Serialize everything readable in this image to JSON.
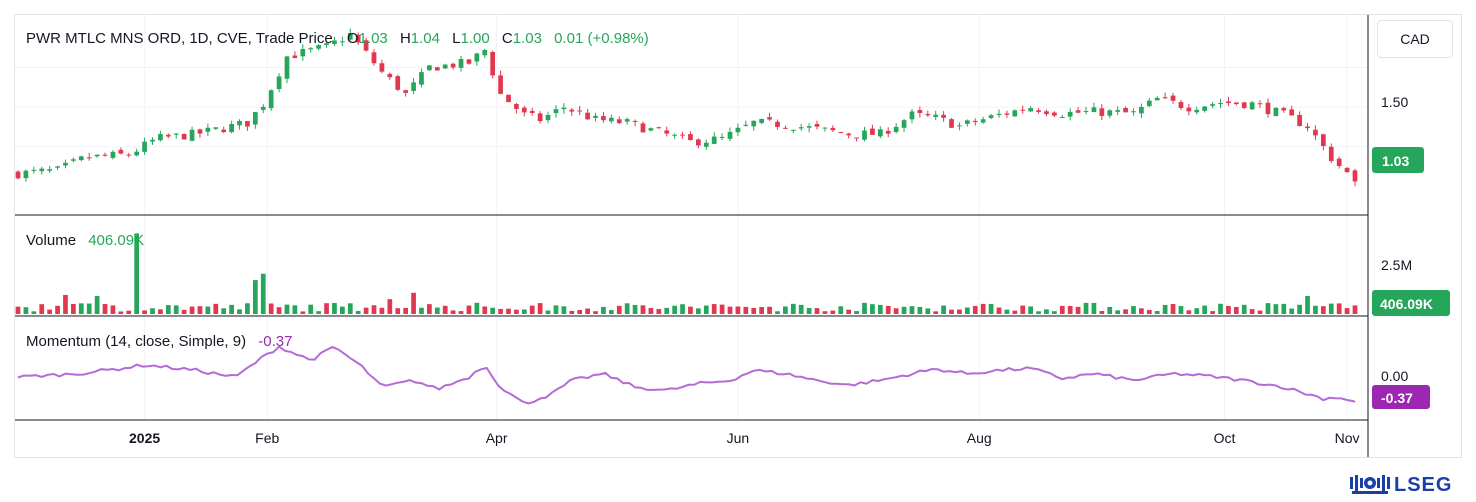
{
  "header": {
    "symbol_title": "PWR MTLC MNS ORD, 1D, CVE, Trade Price",
    "o_label": "O",
    "o_value": "1.03",
    "h_label": "H",
    "h_value": "1.04",
    "l_label": "L",
    "l_value": "1.00",
    "c_label": "C",
    "c_value": "1.03",
    "change": "0.01 (+0.98%)"
  },
  "currency": "CAD",
  "volume_pane": {
    "title": "Volume",
    "value": "406.09K",
    "axis_label": "2.5M",
    "last_tag": "406.09K"
  },
  "momentum_pane": {
    "title": "Momentum (14, close, Simple, 9)",
    "value": "-0.37",
    "axis_label": "0.00",
    "last_tag": "-0.37"
  },
  "price_axis": {
    "label": "1.50",
    "last_tag": "1.03"
  },
  "x_axis": {
    "labels": [
      {
        "text": "2025",
        "bold": true,
        "day": 32
      },
      {
        "text": "Feb",
        "bold": false,
        "day": 63
      },
      {
        "text": "Apr",
        "bold": false,
        "day": 121
      },
      {
        "text": "Jun",
        "bold": false,
        "day": 182
      },
      {
        "text": "Aug",
        "bold": false,
        "day": 243
      },
      {
        "text": "Oct",
        "bold": false,
        "day": 305
      },
      {
        "text": "Nov",
        "bold": false,
        "day": 336
      }
    ]
  },
  "logo": {
    "text": "LSEG"
  },
  "colors": {
    "up": "#26a65b",
    "down": "#e0394f",
    "momentum": "#b36bd6",
    "tag_mom": "#9c27b0"
  },
  "chart_data": [
    {
      "type": "candlestick",
      "title": "PWR MTLC MNS ORD, 1D, CVE, Trade Price",
      "x_unit": "days since 2024-12-01",
      "ylim": [
        0.85,
        2.05
      ],
      "price_ticks": [
        1.5
      ],
      "keyframes": [
        [
          0,
          1.08
        ],
        [
          10,
          1.1
        ],
        [
          17,
          1.18
        ],
        [
          28,
          1.2
        ],
        [
          35,
          1.3
        ],
        [
          45,
          1.33
        ],
        [
          58,
          1.4
        ],
        [
          62,
          1.52
        ],
        [
          68,
          1.82
        ],
        [
          78,
          1.88
        ],
        [
          84,
          1.96
        ],
        [
          92,
          1.72
        ],
        [
          98,
          1.58
        ],
        [
          104,
          1.75
        ],
        [
          114,
          1.78
        ],
        [
          118,
          1.86
        ],
        [
          122,
          1.58
        ],
        [
          128,
          1.45
        ],
        [
          132,
          1.42
        ],
        [
          138,
          1.5
        ],
        [
          146,
          1.42
        ],
        [
          154,
          1.4
        ],
        [
          162,
          1.34
        ],
        [
          170,
          1.28
        ],
        [
          178,
          1.3
        ],
        [
          186,
          1.4
        ],
        [
          194,
          1.39
        ],
        [
          202,
          1.36
        ],
        [
          210,
          1.33
        ],
        [
          218,
          1.33
        ],
        [
          226,
          1.45
        ],
        [
          232,
          1.43
        ],
        [
          238,
          1.38
        ],
        [
          248,
          1.45
        ],
        [
          256,
          1.5
        ],
        [
          264,
          1.46
        ],
        [
          272,
          1.47
        ],
        [
          282,
          1.46
        ],
        [
          288,
          1.55
        ],
        [
          296,
          1.5
        ],
        [
          304,
          1.53
        ],
        [
          312,
          1.52
        ],
        [
          320,
          1.45
        ],
        [
          326,
          1.38
        ],
        [
          332,
          1.18
        ],
        [
          336,
          1.08
        ],
        [
          338,
          1.03
        ]
      ],
      "last": 1.03
    },
    {
      "type": "bar",
      "title": "Volume",
      "ylim": [
        0,
        4200000
      ],
      "ticks": [
        2500000
      ],
      "spikes": [
        [
          30,
          3800000
        ],
        [
          63,
          1900000
        ],
        [
          61,
          1600000
        ],
        [
          13,
          900000
        ],
        [
          20,
          850000
        ],
        [
          88,
          300000
        ],
        [
          94,
          700000
        ],
        [
          100,
          1000000
        ],
        [
          327,
          850000
        ],
        [
          335,
          500000
        ]
      ],
      "last": 406090
    },
    {
      "type": "line",
      "title": "Momentum (14, close, Simple, 9)",
      "ylim": [
        -0.55,
        0.7
      ],
      "ticks": [
        0.0
      ],
      "keyframes": [
        [
          0,
          0.0
        ],
        [
          15,
          0.05
        ],
        [
          25,
          0.12
        ],
        [
          32,
          0.18
        ],
        [
          45,
          0.1
        ],
        [
          55,
          0.0
        ],
        [
          62,
          0.3
        ],
        [
          66,
          0.45
        ],
        [
          74,
          0.25
        ],
        [
          80,
          0.45
        ],
        [
          87,
          0.15
        ],
        [
          92,
          -0.15
        ],
        [
          100,
          -0.05
        ],
        [
          106,
          -0.18
        ],
        [
          114,
          0.0
        ],
        [
          118,
          0.18
        ],
        [
          122,
          -0.15
        ],
        [
          128,
          -0.4
        ],
        [
          135,
          -0.25
        ],
        [
          140,
          -0.05
        ],
        [
          148,
          0.05
        ],
        [
          156,
          -0.15
        ],
        [
          164,
          -0.2
        ],
        [
          172,
          -0.1
        ],
        [
          180,
          -0.05
        ],
        [
          186,
          0.1
        ],
        [
          194,
          0.05
        ],
        [
          202,
          -0.05
        ],
        [
          210,
          -0.12
        ],
        [
          218,
          -0.05
        ],
        [
          226,
          0.05
        ],
        [
          232,
          0.12
        ],
        [
          240,
          0.05
        ],
        [
          248,
          0.1
        ],
        [
          256,
          0.13
        ],
        [
          264,
          -0.02
        ],
        [
          272,
          0.05
        ],
        [
          282,
          -0.05
        ],
        [
          292,
          0.05
        ],
        [
          300,
          0.02
        ],
        [
          310,
          -0.05
        ],
        [
          320,
          -0.15
        ],
        [
          330,
          -0.32
        ],
        [
          334,
          -0.3
        ],
        [
          338,
          -0.37
        ]
      ],
      "last": -0.37
    }
  ]
}
